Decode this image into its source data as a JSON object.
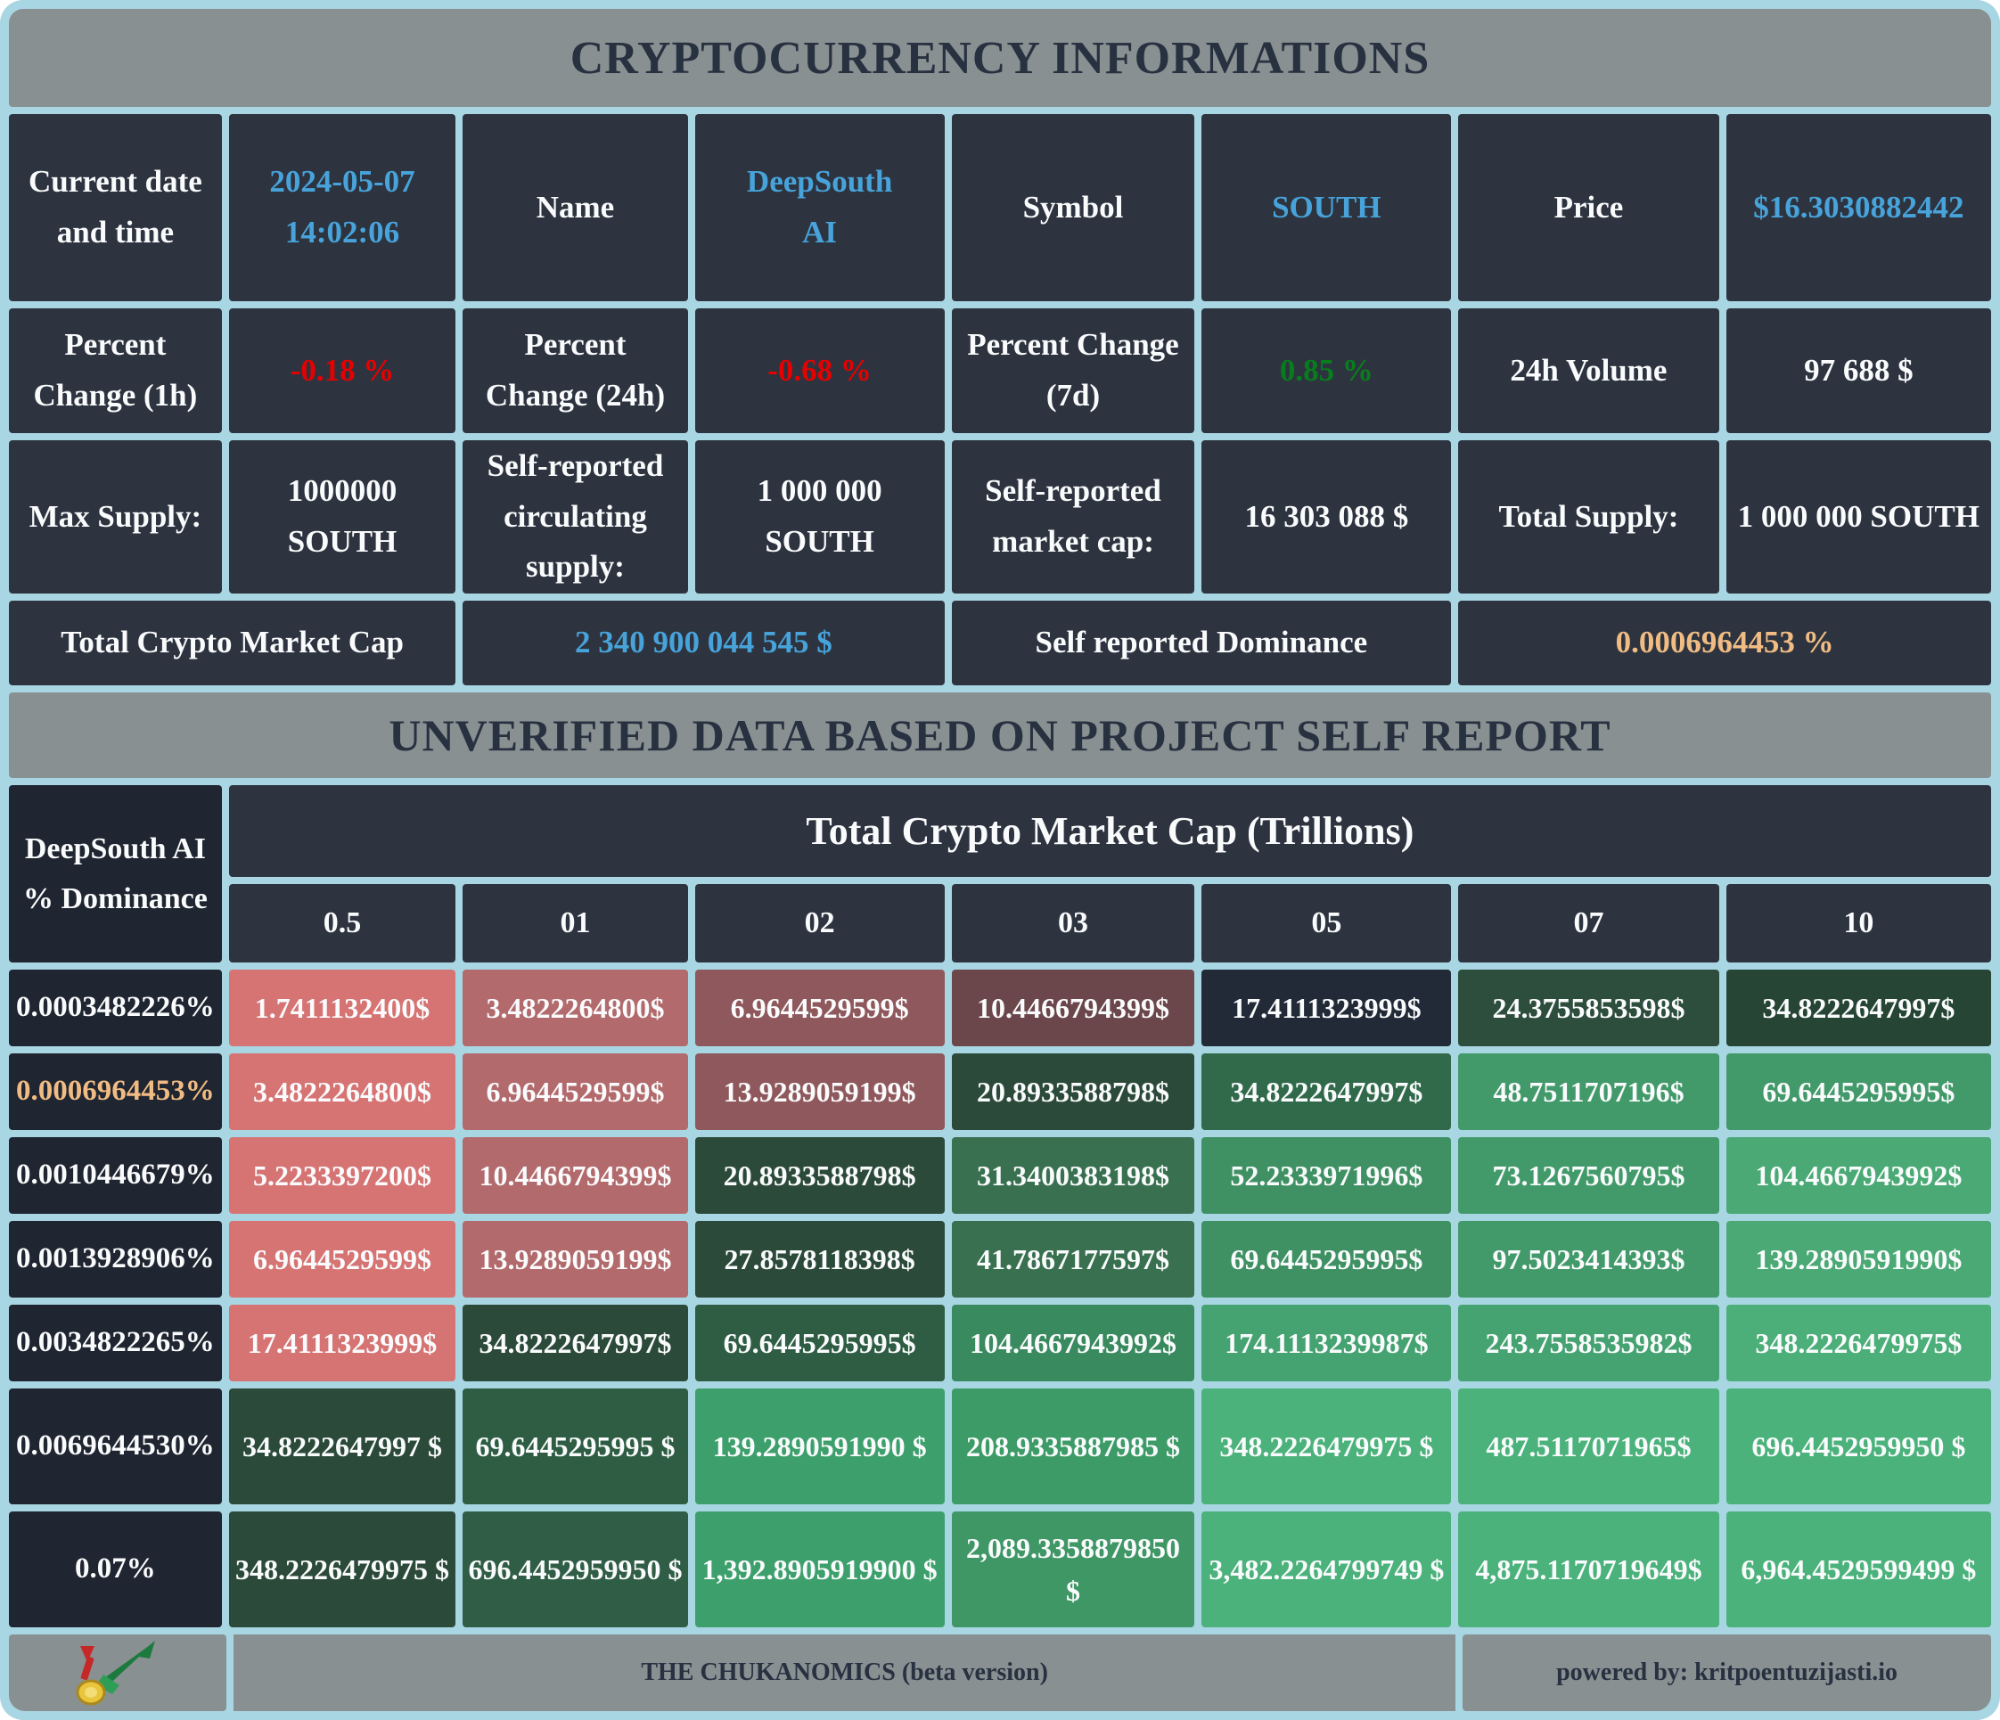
{
  "title": "CRYPTOCURRENCY INFORMATIONS",
  "banner": "UNVERIFIED DATA BASED ON PROJECT SELF REPORT",
  "palette": {
    "frame": "#a9d6e3",
    "bar_bg": "#899092",
    "bar_text": "#273140",
    "cell_bg": "#2d3440",
    "label_bg": "#1f2531",
    "white": "#fafbfc",
    "blue": "#47a3da",
    "red": "#e60000",
    "green": "#077d1c",
    "orange": "#f1bc83"
  },
  "info_rows": [
    [
      {
        "t": "Current date and time"
      },
      {
        "t": "2024-05-07\n14:02:06",
        "c": "blue"
      },
      {
        "t": "Name"
      },
      {
        "t": "DeepSouth\nAI",
        "c": "blue"
      },
      {
        "t": "Symbol"
      },
      {
        "t": "SOUTH",
        "c": "blue"
      },
      {
        "t": "Price"
      },
      {
        "t": "$16.3030882442",
        "c": "blue"
      }
    ],
    [
      {
        "t": "Percent Change (1h)"
      },
      {
        "t": "-0.18 %",
        "c": "red"
      },
      {
        "t": "Percent Change (24h)"
      },
      {
        "t": "-0.68 %",
        "c": "red"
      },
      {
        "t": "Percent Change (7d)"
      },
      {
        "t": "0.85 %",
        "c": "green"
      },
      {
        "t": "24h Volume"
      },
      {
        "t": "97 688 $"
      }
    ],
    [
      {
        "t": "Max Supply:"
      },
      {
        "t": "1000000\nSOUTH"
      },
      {
        "t": "Self-reported circulating supply:"
      },
      {
        "t": "1 000 000\nSOUTH"
      },
      {
        "t": "Self-reported market cap:"
      },
      {
        "t": "16 303 088 $"
      },
      {
        "t": "Total Supply:"
      },
      {
        "t": "1 000 000 SOUTH"
      }
    ],
    [
      {
        "t": "Total Crypto Market Cap"
      },
      {
        "t": "2 340 900 044 545 $",
        "c": "blue"
      },
      {
        "t": "Self reported Dominance"
      },
      {
        "t": "0.0006964453 %",
        "c": "orange"
      }
    ]
  ],
  "matrix": {
    "corner_label": "DeepSouth AI % Dominance",
    "span_header": "Total Crypto Market Cap (Trillions)",
    "col_headers": [
      "0.5",
      "01",
      "02",
      "03",
      "05",
      "07",
      "10"
    ],
    "rows": [
      {
        "label": "0.0003482226%",
        "cells": [
          {
            "t": "1.7411132400$",
            "bg": "#d67474"
          },
          {
            "t": "3.4822264800$",
            "bg": "#b26a6c"
          },
          {
            "t": "6.9644529599$",
            "bg": "#8f585c"
          },
          {
            "t": "10.4466794399$",
            "bg": "#6b474c"
          },
          {
            "t": "17.4111323999$",
            "bg": "#222a37"
          },
          {
            "t": "24.3755853598$",
            "bg": "#2d4d3d"
          },
          {
            "t": "34.8222647997$",
            "bg": "#264534"
          }
        ]
      },
      {
        "label": "0.0006964453%",
        "label_color": "orange",
        "cells": [
          {
            "t": "3.4822264800$",
            "bg": "#d67474"
          },
          {
            "t": "6.9644529599$",
            "bg": "#b26a6c"
          },
          {
            "t": "13.9289059199$",
            "bg": "#8f585c"
          },
          {
            "t": "20.8933588798$",
            "bg": "#2c4a3a"
          },
          {
            "t": "34.8222647997$",
            "bg": "#316a4b"
          },
          {
            "t": "48.7511707196$",
            "bg": "#42996a"
          },
          {
            "t": "69.6445295995$",
            "bg": "#42996a"
          }
        ]
      },
      {
        "label": "0.0010446679%",
        "cells": [
          {
            "t": "5.2233397200$",
            "bg": "#d67474"
          },
          {
            "t": "10.4466794399$",
            "bg": "#b26a6c"
          },
          {
            "t": "20.8933588798$",
            "bg": "#2c4a3a"
          },
          {
            "t": "31.3400383198$",
            "bg": "#397150"
          },
          {
            "t": "52.2333971996$",
            "bg": "#3f9164"
          },
          {
            "t": "73.1267560795$",
            "bg": "#429a6a"
          },
          {
            "t": "104.4667943992$",
            "bg": "#4aa974"
          }
        ]
      },
      {
        "label": "0.0013928906%",
        "cells": [
          {
            "t": "6.9644529599$",
            "bg": "#d67474"
          },
          {
            "t": "13.9289059199$",
            "bg": "#b26a6c"
          },
          {
            "t": "27.8578118398$",
            "bg": "#2c4a3a"
          },
          {
            "t": "41.7867177597$",
            "bg": "#397150"
          },
          {
            "t": "69.6445295995$",
            "bg": "#3f9164"
          },
          {
            "t": "97.5023414393$",
            "bg": "#429a6a"
          },
          {
            "t": "139.2890591990$",
            "bg": "#4aa974"
          }
        ]
      },
      {
        "label": "0.0034822265%",
        "cells": [
          {
            "t": "17.4111323999$",
            "bg": "#d67474"
          },
          {
            "t": "34.8222647997$",
            "bg": "#2c4a3a"
          },
          {
            "t": "69.6445295995$",
            "bg": "#2e5d44"
          },
          {
            "t": "104.4667943992$",
            "bg": "#3a8a5f"
          },
          {
            "t": "174.1113239987$",
            "bg": "#45a271"
          },
          {
            "t": "243.7558535982$",
            "bg": "#45a271"
          },
          {
            "t": "348.2226479975$",
            "bg": "#4cae79"
          }
        ]
      },
      {
        "label": "0.0069644530%",
        "cells": [
          {
            "t": "34.8222647997 $",
            "bg": "#2b4a39"
          },
          {
            "t": "69.6445295995 $",
            "bg": "#2e5d44"
          },
          {
            "t": "139.2890591990 $",
            "bg": "#3da06c"
          },
          {
            "t": "208.9335887985 $",
            "bg": "#3d9b68"
          },
          {
            "t": "348.2226479975 $",
            "bg": "#4bb27b"
          },
          {
            "t": "487.5117071965$",
            "bg": "#4bb27b"
          },
          {
            "t": "696.4452959950 $",
            "bg": "#4bb27b"
          }
        ]
      },
      {
        "label": "0.07%",
        "cells": [
          {
            "t": "348.2226479975 $",
            "bg": "#2b4a39"
          },
          {
            "t": "696.4452959950 $",
            "bg": "#305d45"
          },
          {
            "t": "1,392.8905919900 $",
            "bg": "#3da06c"
          },
          {
            "t": "2,089.3358879850 $",
            "bg": "#3f9766"
          },
          {
            "t": "3,482.2264799749 $",
            "bg": "#4bb27b"
          },
          {
            "t": "4,875.1170719649$",
            "bg": "#4bb27b"
          },
          {
            "t": "6,964.4529599499 $",
            "bg": "#4bb27b"
          }
        ]
      }
    ]
  },
  "footer": {
    "brand": "THE CHUKANOMICS (beta version)",
    "powered": "powered by: kritpoentuzijasti.io",
    "logo": "chart-coin-logo"
  }
}
